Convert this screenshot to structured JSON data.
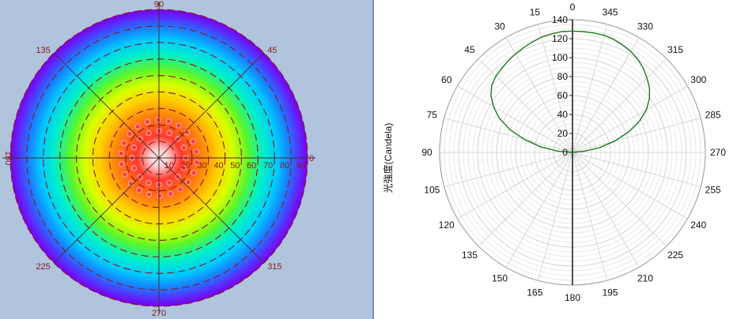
{
  "chart_data": [
    {
      "type": "heatmap",
      "plot": "polar-intensity-map",
      "angle_labels": [
        "0",
        "45",
        "90",
        "135",
        "180",
        "225",
        "270",
        "315"
      ],
      "radial_labels": [
        "10",
        "20",
        "30",
        "40",
        "50",
        "60",
        "70",
        "80",
        "90"
      ],
      "radial_range": [
        0,
        90
      ],
      "colors": [
        "#ffffff",
        "#ff2020",
        "#ff9900",
        "#ffff00",
        "#7cfc00",
        "#00e5ff",
        "#1e90ff",
        "#7b00ff"
      ]
    },
    {
      "type": "line",
      "plot": "polar-line",
      "ylabel": "光強度(Candela)",
      "angle_labels": [
        "0",
        "15",
        "30",
        "45",
        "60",
        "75",
        "90",
        "105",
        "120",
        "135",
        "150",
        "165",
        "180",
        "195",
        "210",
        "225",
        "240",
        "255",
        "270",
        "285",
        "300",
        "315",
        "330",
        "345"
      ],
      "radial_ticks": [
        "0",
        "20",
        "40",
        "60",
        "80",
        "100",
        "120",
        "140"
      ],
      "rlim": [
        0,
        140
      ],
      "series": [
        {
          "color": "#1a7a1a",
          "points": [
            {
              "angle": 0,
              "value": 128
            },
            {
              "angle": 5,
              "value": 128
            },
            {
              "angle": 10,
              "value": 127
            },
            {
              "angle": 15,
              "value": 126
            },
            {
              "angle": 20,
              "value": 124
            },
            {
              "angle": 25,
              "value": 122
            },
            {
              "angle": 30,
              "value": 120
            },
            {
              "angle": 35,
              "value": 118
            },
            {
              "angle": 40,
              "value": 116
            },
            {
              "angle": 45,
              "value": 114
            },
            {
              "angle": 50,
              "value": 111
            },
            {
              "angle": 55,
              "value": 105
            },
            {
              "angle": 60,
              "value": 96
            },
            {
              "angle": 65,
              "value": 85
            },
            {
              "angle": 70,
              "value": 70
            },
            {
              "angle": 75,
              "value": 52
            },
            {
              "angle": 80,
              "value": 34
            },
            {
              "angle": 85,
              "value": 16
            },
            {
              "angle": 90,
              "value": 0
            },
            {
              "angle": 270,
              "value": 0
            },
            {
              "angle": 275,
              "value": 12
            },
            {
              "angle": 280,
              "value": 29
            },
            {
              "angle": 285,
              "value": 46
            },
            {
              "angle": 290,
              "value": 63
            },
            {
              "angle": 295,
              "value": 78
            },
            {
              "angle": 300,
              "value": 90
            },
            {
              "angle": 305,
              "value": 99
            },
            {
              "angle": 310,
              "value": 106
            },
            {
              "angle": 315,
              "value": 111
            },
            {
              "angle": 320,
              "value": 116
            },
            {
              "angle": 325,
              "value": 120
            },
            {
              "angle": 330,
              "value": 123
            },
            {
              "angle": 335,
              "value": 125
            },
            {
              "angle": 340,
              "value": 127
            },
            {
              "angle": 345,
              "value": 128
            },
            {
              "angle": 350,
              "value": 128
            },
            {
              "angle": 355,
              "value": 128
            },
            {
              "angle": 360,
              "value": 128
            }
          ]
        }
      ]
    }
  ]
}
